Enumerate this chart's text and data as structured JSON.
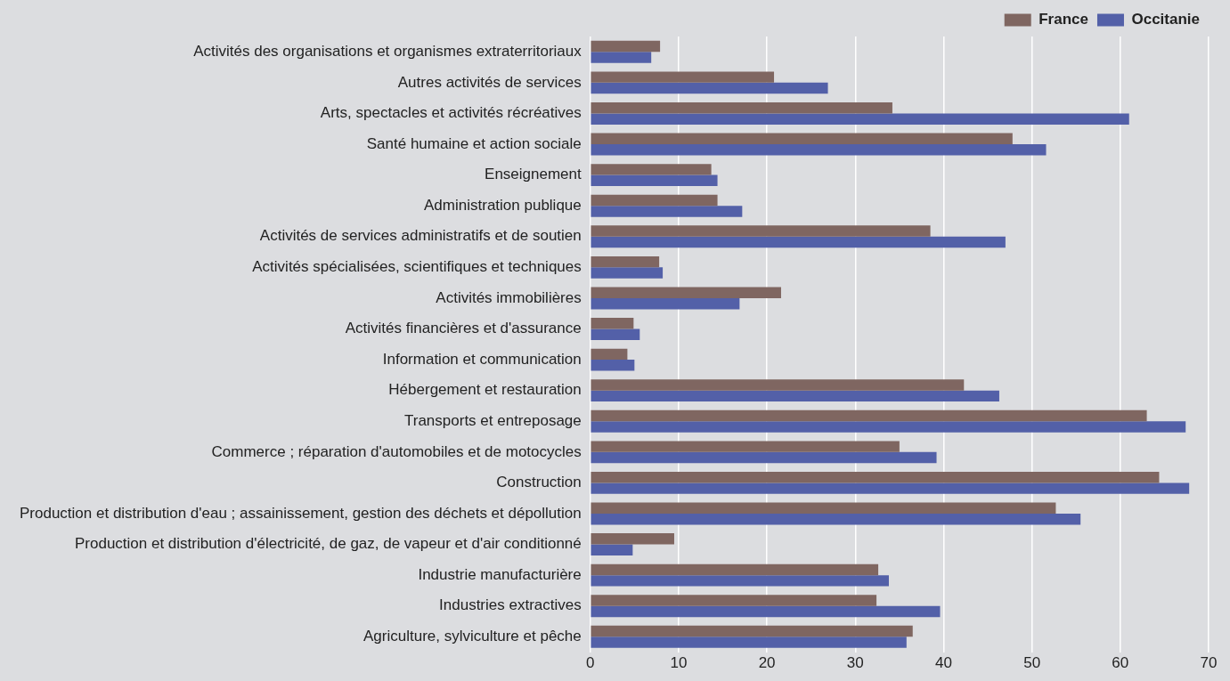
{
  "chart_data": {
    "type": "bar",
    "orientation": "horizontal",
    "categories": [
      "Activités des organisations et organismes extraterritoriaux",
      "Autres activités de services",
      "Arts, spectacles et activités récréatives",
      "Santé humaine et action sociale",
      "Enseignement",
      "Administration publique",
      "Activités de services administratifs et de soutien",
      "Activités spécialisées, scientifiques et techniques",
      "Activités immobilières",
      "Activités financières et d'assurance",
      "Information et communication",
      "Hébergement et restauration",
      "Transports et entreposage",
      "Commerce ; réparation d'automobiles et de motocycles",
      "Construction",
      "Production et distribution d'eau ; assainissement, gestion des déchets et dépollution",
      "Production et distribution d'électricité, de gaz, de vapeur et d'air conditionné",
      "Industrie manufacturière",
      "Industries extractives",
      "Agriculture, sylviculture et pêche"
    ],
    "series": [
      {
        "name": "France",
        "color": "#7f6661",
        "values": [
          7.9,
          20.8,
          34.2,
          47.8,
          13.7,
          14.4,
          38.5,
          7.8,
          21.6,
          4.9,
          4.2,
          42.3,
          63.0,
          35.0,
          64.4,
          52.7,
          9.5,
          32.6,
          32.4,
          36.5
        ]
      },
      {
        "name": "Occitanie",
        "color": "#5360a8",
        "values": [
          6.9,
          26.9,
          61.0,
          51.6,
          14.4,
          17.2,
          47.0,
          8.2,
          16.9,
          5.6,
          5.0,
          46.3,
          67.4,
          39.2,
          67.8,
          55.5,
          4.8,
          33.8,
          39.6,
          35.8
        ]
      }
    ],
    "xlim": [
      0,
      70
    ],
    "xticks": [
      0,
      10,
      20,
      30,
      40,
      50,
      60,
      70
    ],
    "grid": "x",
    "legend": "top right"
  }
}
